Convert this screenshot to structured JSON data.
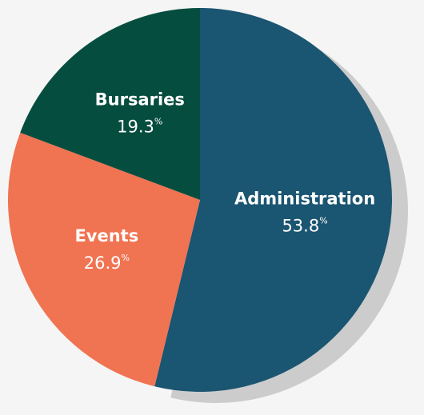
{
  "chart_data": {
    "type": "pie",
    "categories": [
      "Administration",
      "Events",
      "Bursaries"
    ],
    "values": [
      53.8,
      26.9,
      19.3
    ],
    "unit": "%",
    "colors": [
      "#1a5571",
      "#f07352",
      "#054d3f"
    ],
    "shadow_color": "#cccccc"
  }
}
